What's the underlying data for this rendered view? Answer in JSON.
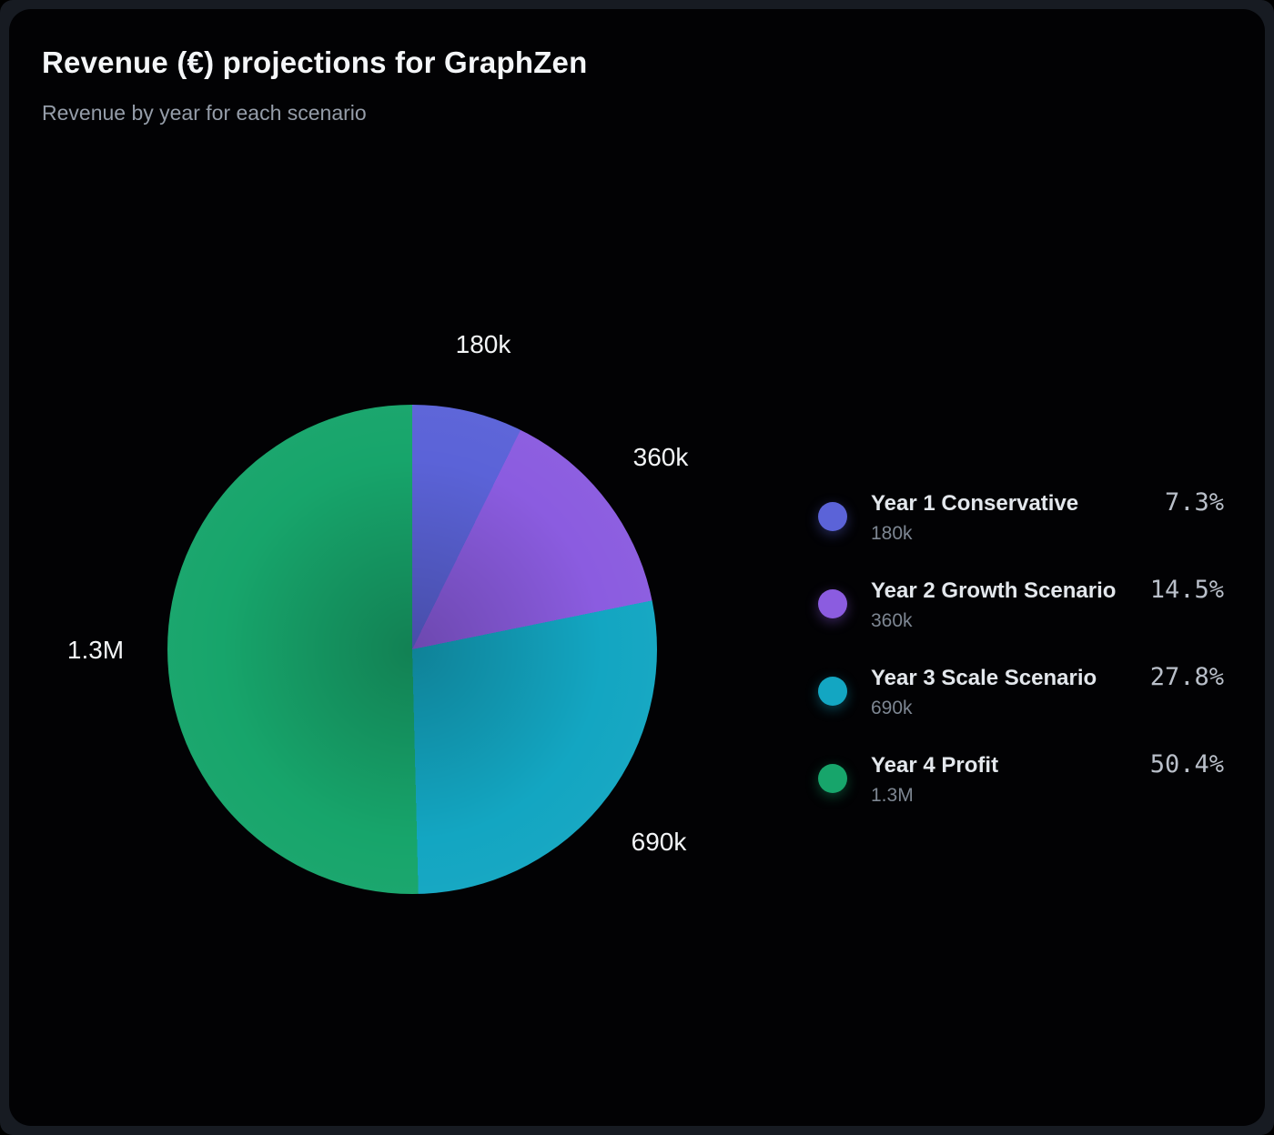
{
  "header": {
    "title": "Revenue (€) projections for GraphZen",
    "subtitle": "Revenue by year for each scenario"
  },
  "chart_data": {
    "type": "pie",
    "title": "Revenue (€) projections for GraphZen",
    "subtitle": "Revenue by year for each scenario",
    "legend_position": "right",
    "start_angle_deg": 0,
    "direction": "clockwise",
    "slices": [
      {
        "label": "Year 1 Conservative",
        "display_value": "180k",
        "percent": "7.3%",
        "percent_num": 7.3,
        "color": "#5b63d8"
      },
      {
        "label": "Year 2 Growth Scenario",
        "display_value": "360k",
        "percent": "14.5%",
        "percent_num": 14.5,
        "color": "#8b5ce0"
      },
      {
        "label": "Year 3 Scale Scenario",
        "display_value": "690k",
        "percent": "27.8%",
        "percent_num": 27.8,
        "color": "#13a6c2"
      },
      {
        "label": "Year 4 Profit",
        "display_value": "1.3M",
        "percent": "50.4%",
        "percent_num": 50.4,
        "color": "#17a56b"
      }
    ]
  }
}
